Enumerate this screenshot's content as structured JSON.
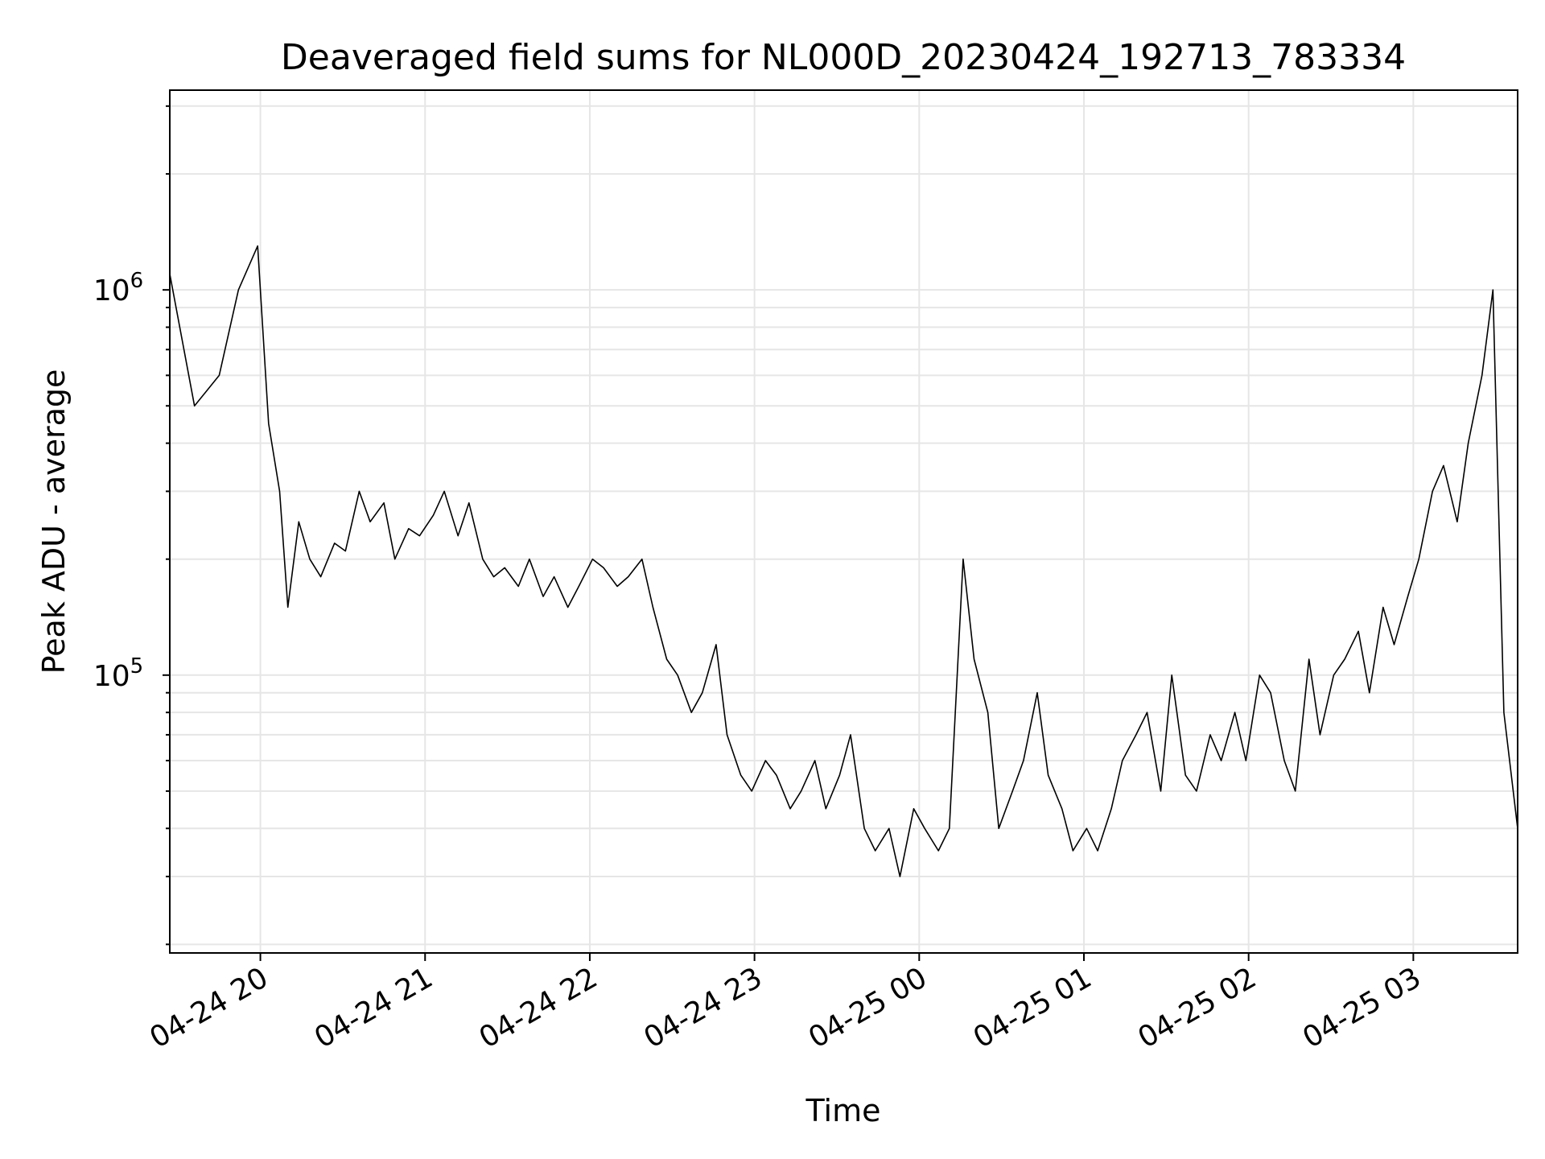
{
  "chart_data": {
    "type": "line",
    "title": "Deaveraged field sums for NL000D_20230424_192713_783334",
    "xlabel": "Time",
    "ylabel": "Peak ADU - average",
    "x_tick_labels": [
      "04-24 20",
      "04-24 21",
      "04-24 22",
      "04-24 23",
      "04-25 00",
      "04-25 01",
      "04-25 02",
      "04-25 03"
    ],
    "y_tick_labels": [
      {
        "base": "10",
        "exp": "5",
        "value": 100000
      },
      {
        "base": "10",
        "exp": "6",
        "value": 1000000
      }
    ],
    "xlim": [
      "2023-04-24 19:27",
      "2023-04-25 03:38"
    ],
    "ylim": [
      19000,
      3300000
    ],
    "yscale": "log",
    "grid": true,
    "grid_color": "#e6e6e6",
    "line_color": "#000000",
    "series": [
      {
        "x": [
          "2023-04-24 19:27",
          "2023-04-24 19:36",
          "2023-04-24 19:45",
          "2023-04-24 19:52",
          "2023-04-24 19:59",
          "2023-04-24 20:03",
          "2023-04-24 20:07",
          "2023-04-24 20:10",
          "2023-04-24 20:14",
          "2023-04-24 20:18",
          "2023-04-24 20:22",
          "2023-04-24 20:27",
          "2023-04-24 20:31",
          "2023-04-24 20:36",
          "2023-04-24 20:40",
          "2023-04-24 20:45",
          "2023-04-24 20:49",
          "2023-04-24 20:54",
          "2023-04-24 20:58",
          "2023-04-24 21:03",
          "2023-04-24 21:07",
          "2023-04-24 21:12",
          "2023-04-24 21:16",
          "2023-04-24 21:21",
          "2023-04-24 21:25",
          "2023-04-24 21:29",
          "2023-04-24 21:34",
          "2023-04-24 21:38",
          "2023-04-24 21:43",
          "2023-04-24 21:47",
          "2023-04-24 21:52",
          "2023-04-24 21:56",
          "2023-04-24 22:01",
          "2023-04-24 22:05",
          "2023-04-24 22:10",
          "2023-04-24 22:14",
          "2023-04-24 22:19",
          "2023-04-24 22:23",
          "2023-04-24 22:28",
          "2023-04-24 22:32",
          "2023-04-24 22:37",
          "2023-04-24 22:41",
          "2023-04-24 22:46",
          "2023-04-24 22:50",
          "2023-04-24 22:55",
          "2023-04-24 22:59",
          "2023-04-24 23:04",
          "2023-04-24 23:08",
          "2023-04-24 23:13",
          "2023-04-24 23:17",
          "2023-04-24 23:22",
          "2023-04-24 23:26",
          "2023-04-24 23:31",
          "2023-04-24 23:35",
          "2023-04-24 23:40",
          "2023-04-24 23:44",
          "2023-04-24 23:49",
          "2023-04-24 23:53",
          "2023-04-24 23:58",
          "2023-04-25 00:02",
          "2023-04-25 00:07",
          "2023-04-25 00:11",
          "2023-04-25 00:16",
          "2023-04-25 00:20",
          "2023-04-25 00:25",
          "2023-04-25 00:29",
          "2023-04-25 00:34",
          "2023-04-25 00:38",
          "2023-04-25 00:43",
          "2023-04-25 00:47",
          "2023-04-25 00:52",
          "2023-04-25 00:56",
          "2023-04-25 01:01",
          "2023-04-25 01:05",
          "2023-04-25 01:10",
          "2023-04-25 01:14",
          "2023-04-25 01:19",
          "2023-04-25 01:23",
          "2023-04-25 01:28",
          "2023-04-25 01:32",
          "2023-04-25 01:37",
          "2023-04-25 01:41",
          "2023-04-25 01:46",
          "2023-04-25 01:50",
          "2023-04-25 01:55",
          "2023-04-25 01:59",
          "2023-04-25 02:04",
          "2023-04-25 02:08",
          "2023-04-25 02:13",
          "2023-04-25 02:17",
          "2023-04-25 02:22",
          "2023-04-25 02:26",
          "2023-04-25 02:31",
          "2023-04-25 02:35",
          "2023-04-25 02:40",
          "2023-04-25 02:44",
          "2023-04-25 02:49",
          "2023-04-25 02:53",
          "2023-04-25 02:58",
          "2023-04-25 03:02",
          "2023-04-25 03:07",
          "2023-04-25 03:11",
          "2023-04-25 03:16",
          "2023-04-25 03:20",
          "2023-04-25 03:25",
          "2023-04-25 03:29",
          "2023-04-25 03:33",
          "2023-04-25 03:38"
        ],
        "values": [
          1100000,
          500000,
          600000,
          1000000,
          1300000,
          450000,
          300000,
          150000,
          250000,
          200000,
          180000,
          220000,
          210000,
          300000,
          250000,
          280000,
          200000,
          240000,
          230000,
          260000,
          300000,
          230000,
          280000,
          200000,
          180000,
          190000,
          170000,
          200000,
          160000,
          180000,
          150000,
          170000,
          200000,
          190000,
          170000,
          180000,
          200000,
          150000,
          110000,
          100000,
          80000,
          90000,
          120000,
          70000,
          55000,
          50000,
          60000,
          55000,
          45000,
          50000,
          60000,
          45000,
          55000,
          70000,
          40000,
          35000,
          40000,
          30000,
          45000,
          40000,
          35000,
          40000,
          200000,
          110000,
          80000,
          40000,
          50000,
          60000,
          90000,
          55000,
          45000,
          35000,
          40000,
          35000,
          45000,
          60000,
          70000,
          80000,
          50000,
          100000,
          55000,
          50000,
          70000,
          60000,
          80000,
          60000,
          100000,
          90000,
          60000,
          50000,
          110000,
          70000,
          100000,
          110000,
          130000,
          90000,
          150000,
          120000,
          160000,
          200000,
          300000,
          350000,
          250000,
          400000,
          600000,
          1000000,
          80000,
          40000
        ]
      }
    ]
  }
}
